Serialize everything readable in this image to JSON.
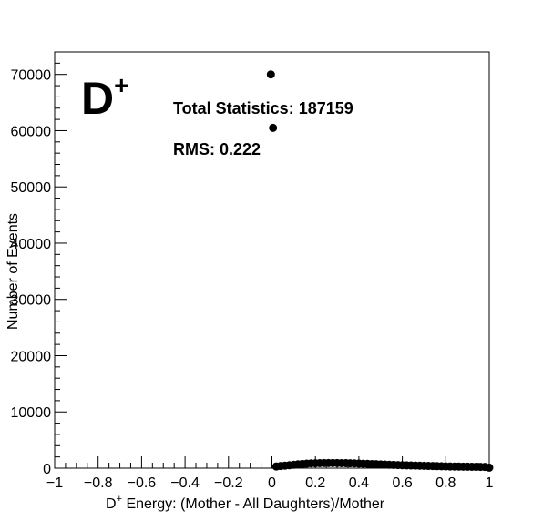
{
  "chart_data": {
    "type": "scatter",
    "title": "",
    "particle_label": "D",
    "particle_charge": "+",
    "xlabel_prefix": "D",
    "xlabel_sup": "+",
    "xlabel_rest": " Energy: (Mother - All Daughters)/Mother",
    "ylabel": "Number of Events",
    "stats_total": "Total Statistics: 187159",
    "stats_rms": "RMS: 0.222",
    "xlim": [
      -1,
      1
    ],
    "ylim": [
      0,
      74000
    ],
    "x_ticks": [
      -1,
      -0.8,
      -0.6,
      -0.4,
      -0.2,
      0,
      0.2,
      0.4,
      0.6,
      0.8,
      1
    ],
    "x_tick_labels": [
      "−1",
      "−0.8",
      "−0.6",
      "−0.4",
      "−0.2",
      "0",
      "0.2",
      "0.4",
      "0.6",
      "0.8",
      "1"
    ],
    "y_ticks": [
      0,
      10000,
      20000,
      30000,
      40000,
      50000,
      60000,
      70000
    ],
    "y_tick_labels": [
      "0",
      "10000",
      "20000",
      "30000",
      "40000",
      "50000",
      "60000",
      "70000"
    ],
    "grid": false,
    "series": [
      {
        "marker": "filled-circle",
        "color": "#000000",
        "points": [
          [
            -0.005,
            70000
          ],
          [
            0.005,
            60500
          ],
          [
            0.02,
            300
          ],
          [
            0.04,
            380
          ],
          [
            0.06,
            450
          ],
          [
            0.08,
            520
          ],
          [
            0.1,
            600
          ],
          [
            0.12,
            680
          ],
          [
            0.14,
            750
          ],
          [
            0.16,
            800
          ],
          [
            0.18,
            850
          ],
          [
            0.2,
            880
          ],
          [
            0.22,
            900
          ],
          [
            0.24,
            910
          ],
          [
            0.26,
            920
          ],
          [
            0.28,
            915
          ],
          [
            0.3,
            910
          ],
          [
            0.32,
            900
          ],
          [
            0.34,
            890
          ],
          [
            0.36,
            870
          ],
          [
            0.38,
            850
          ],
          [
            0.4,
            820
          ],
          [
            0.42,
            790
          ],
          [
            0.44,
            760
          ],
          [
            0.46,
            730
          ],
          [
            0.48,
            700
          ],
          [
            0.5,
            670
          ],
          [
            0.52,
            640
          ],
          [
            0.54,
            610
          ],
          [
            0.56,
            580
          ],
          [
            0.58,
            550
          ],
          [
            0.6,
            520
          ],
          [
            0.62,
            500
          ],
          [
            0.64,
            480
          ],
          [
            0.66,
            460
          ],
          [
            0.68,
            440
          ],
          [
            0.7,
            420
          ],
          [
            0.72,
            400
          ],
          [
            0.74,
            380
          ],
          [
            0.76,
            360
          ],
          [
            0.78,
            340
          ],
          [
            0.8,
            320
          ],
          [
            0.82,
            300
          ],
          [
            0.84,
            290
          ],
          [
            0.86,
            280
          ],
          [
            0.88,
            270
          ],
          [
            0.9,
            260
          ],
          [
            0.92,
            250
          ],
          [
            0.94,
            240
          ],
          [
            0.96,
            230
          ],
          [
            0.98,
            220
          ],
          [
            1.0,
            100
          ]
        ]
      }
    ]
  }
}
